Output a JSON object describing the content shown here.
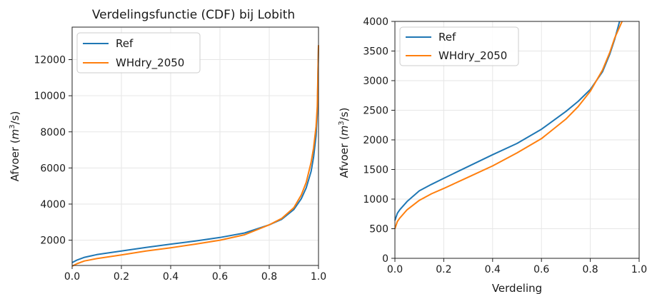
{
  "chart_data": [
    {
      "type": "line",
      "title": "Verdelingsfunctie (CDF) bij Lobith",
      "xlabel": "",
      "ylabel": "Afvoer (m³/s)",
      "ylabel_pre": "Afvoer (",
      "ylabel_m": "m",
      "ylabel_exp": "3",
      "ylabel_post": "/s)",
      "xlim": [
        0,
        1
      ],
      "ylim": [
        600,
        13800
      ],
      "xticks": [
        0.0,
        0.2,
        0.4,
        0.6,
        0.8,
        1.0
      ],
      "xtick_labels": [
        "0.0",
        "0.2",
        "0.4",
        "0.6",
        "0.8",
        "1.0"
      ],
      "yticks": [
        2000,
        4000,
        6000,
        8000,
        10000,
        12000
      ],
      "ytick_labels": [
        "2000",
        "4000",
        "6000",
        "8000",
        "10000",
        "12000"
      ],
      "grid": true,
      "legend_position": "top-left",
      "series": [
        {
          "name": "Ref",
          "color": "#1f77b4",
          "x": [
            0.0,
            0.02,
            0.05,
            0.1,
            0.2,
            0.3,
            0.4,
            0.5,
            0.6,
            0.7,
            0.8,
            0.85,
            0.9,
            0.93,
            0.95,
            0.97,
            0.98,
            0.99,
            0.995,
            1.0
          ],
          "y": [
            760,
            900,
            1050,
            1200,
            1400,
            1600,
            1780,
            1950,
            2150,
            2400,
            2850,
            3150,
            3700,
            4300,
            4900,
            5800,
            6600,
            7800,
            9000,
            12800
          ]
        },
        {
          "name": "WHdry_2050",
          "color": "#ff7f0e",
          "x": [
            0.0,
            0.02,
            0.05,
            0.1,
            0.2,
            0.3,
            0.4,
            0.5,
            0.6,
            0.7,
            0.8,
            0.85,
            0.9,
            0.93,
            0.95,
            0.97,
            0.98,
            0.99,
            0.995,
            1.0
          ],
          "y": [
            560,
            700,
            850,
            980,
            1180,
            1400,
            1580,
            1780,
            2000,
            2300,
            2850,
            3200,
            3800,
            4500,
            5200,
            6300,
            7100,
            8300,
            9400,
            12800
          ]
        }
      ]
    },
    {
      "type": "line",
      "title": "",
      "xlabel": "Verdeling",
      "ylabel": "Afvoer (m³/s)",
      "ylabel_pre": "Afvoer (",
      "ylabel_m": "m",
      "ylabel_exp": "3",
      "ylabel_post": "/s)",
      "xlim": [
        0,
        1
      ],
      "ylim": [
        0,
        4000
      ],
      "xticks": [
        0.0,
        0.2,
        0.4,
        0.6,
        0.8,
        1.0
      ],
      "xtick_labels": [
        "0.0",
        "0.2",
        "0.4",
        "0.6",
        "0.8",
        "1.0"
      ],
      "yticks": [
        0,
        500,
        1000,
        1500,
        2000,
        2500,
        3000,
        3500,
        4000
      ],
      "ytick_labels": [
        "0",
        "500",
        "1000",
        "1500",
        "2000",
        "2500",
        "3000",
        "3500",
        "4000"
      ],
      "grid": true,
      "legend_position": "top-left",
      "series": [
        {
          "name": "Ref",
          "color": "#1f77b4",
          "x": [
            0.0,
            0.01,
            0.02,
            0.05,
            0.1,
            0.15,
            0.2,
            0.3,
            0.4,
            0.5,
            0.6,
            0.7,
            0.75,
            0.8,
            0.85,
            0.88,
            0.9,
            0.92
          ],
          "y": [
            640,
            760,
            820,
            960,
            1140,
            1250,
            1350,
            1550,
            1750,
            1940,
            2180,
            2480,
            2650,
            2850,
            3150,
            3450,
            3700,
            4000
          ]
        },
        {
          "name": "WHdry_2050",
          "color": "#ff7f0e",
          "x": [
            0.0,
            0.01,
            0.02,
            0.05,
            0.1,
            0.15,
            0.2,
            0.3,
            0.4,
            0.5,
            0.6,
            0.7,
            0.75,
            0.8,
            0.85,
            0.88,
            0.9,
            0.93
          ],
          "y": [
            500,
            620,
            680,
            820,
            980,
            1090,
            1180,
            1370,
            1560,
            1780,
            2020,
            2350,
            2560,
            2820,
            3180,
            3480,
            3720,
            4000
          ]
        }
      ]
    }
  ]
}
